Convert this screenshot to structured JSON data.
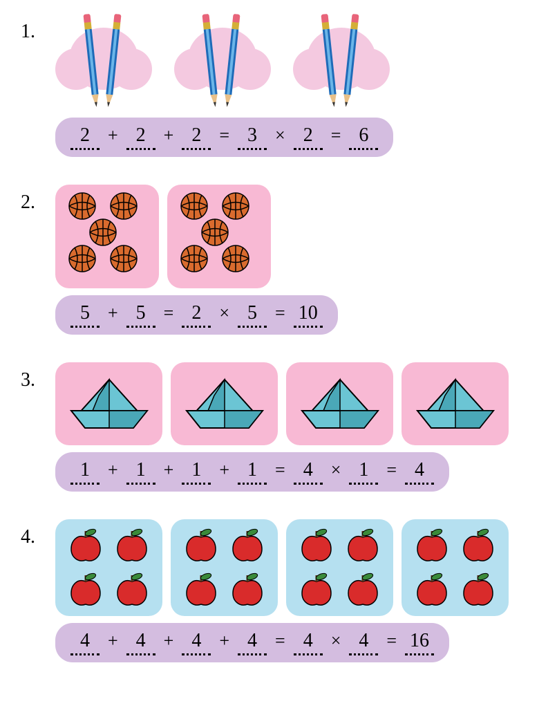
{
  "problems": [
    {
      "number": "1.",
      "groups": 3,
      "per_group": 2,
      "item": "pencil",
      "group_bg": "cloud",
      "equation": {
        "adds": [
          "2",
          "2",
          "2"
        ],
        "mult": [
          "3",
          "2"
        ],
        "result": "6"
      }
    },
    {
      "number": "2.",
      "groups": 2,
      "per_group": 5,
      "item": "basketball",
      "group_bg": "pink",
      "equation": {
        "adds": [
          "5",
          "5"
        ],
        "mult": [
          "2",
          "5"
        ],
        "result": "10"
      }
    },
    {
      "number": "3.",
      "groups": 4,
      "per_group": 1,
      "item": "boat",
      "group_bg": "pink",
      "equation": {
        "adds": [
          "1",
          "1",
          "1",
          "1"
        ],
        "mult": [
          "4",
          "1"
        ],
        "result": "4"
      }
    },
    {
      "number": "4.",
      "groups": 4,
      "per_group": 4,
      "item": "apple",
      "group_bg": "blue",
      "equation": {
        "adds": [
          "4",
          "4",
          "4",
          "4"
        ],
        "mult": [
          "4",
          "4"
        ],
        "result": "16"
      }
    }
  ],
  "colors": {
    "equation_bg": "#d4bde0",
    "pink_group": "#f8b9d4",
    "blue_group": "#b5e0f0",
    "cloud": "#f4c9e0",
    "pencil_body": "#1e6bb8",
    "pencil_stripe": "#6bb5e8",
    "pencil_eraser": "#e8647a",
    "pencil_ferrule": "#d4af37",
    "basketball": "#d96b2e",
    "boat_fill": "#6bc5d4",
    "boat_stroke": "#000000",
    "apple_fill": "#d92b2b",
    "apple_leaf": "#3a8a3a"
  }
}
